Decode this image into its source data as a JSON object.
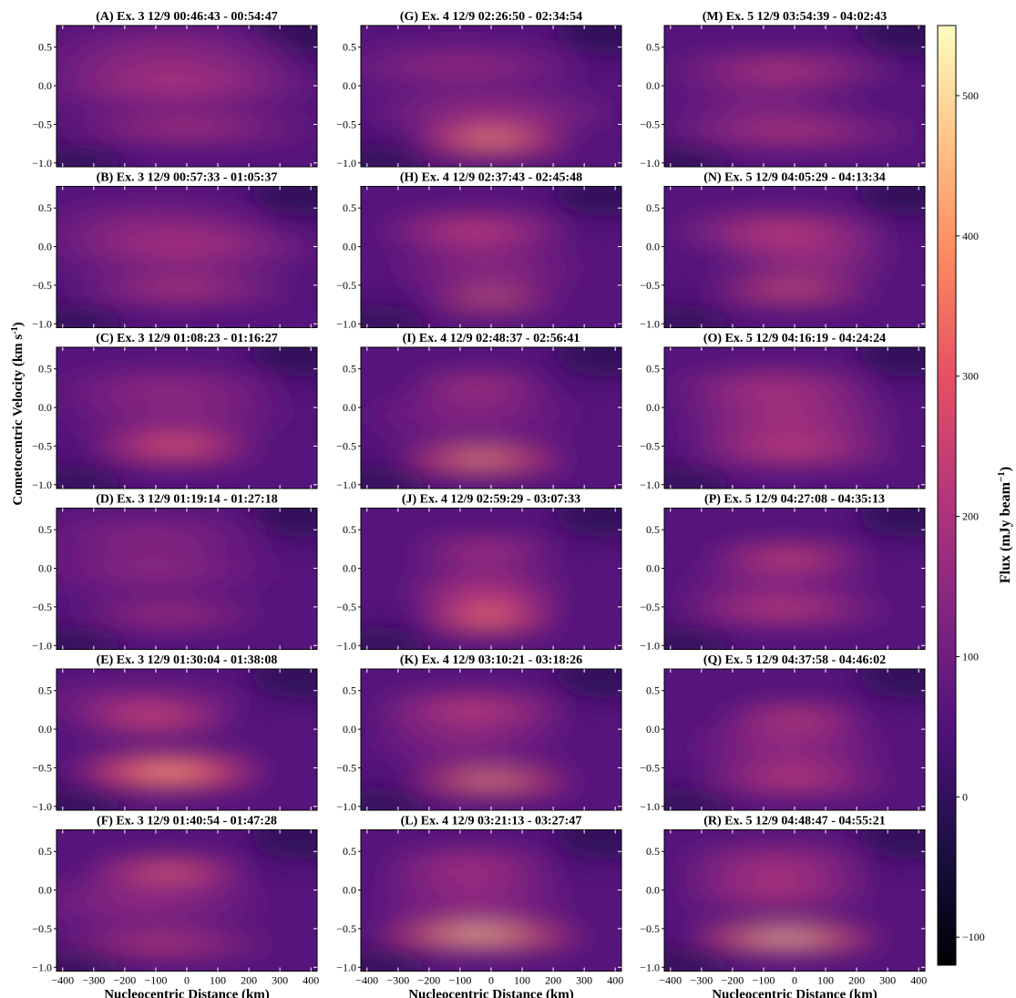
{
  "chart_data": {
    "type": "heatmap",
    "layout": {
      "rows": 6,
      "cols": 3
    },
    "colormap": "magma",
    "colors": {
      "magma_stops": [
        "#000004",
        "#1c1044",
        "#4f127b",
        "#812581",
        "#b5367a",
        "#e55064",
        "#fb8761",
        "#fec287",
        "#fcfdbf"
      ]
    },
    "xlabel": "Nucleocentric Distance (km)",
    "ylabel": "Cometocentric Velocity (km s",
    "ylabel_superscript": "-1",
    "ylabel_close": ")",
    "xlim": [
      -420,
      420
    ],
    "ylim": [
      -1.05,
      0.78
    ],
    "xticks": [
      -400,
      -300,
      -200,
      -100,
      0,
      100,
      200,
      300,
      400
    ],
    "xtick_labels": [
      "−400",
      "−300",
      "−200",
      "−100",
      "0",
      "100",
      "200",
      "300",
      "400"
    ],
    "yticks": [
      0.5,
      0.0,
      -0.5,
      -1.0
    ],
    "ytick_labels": [
      "0.5",
      "0.0",
      "−0.5",
      "−1.0"
    ],
    "colorbar": {
      "label": "Flux (mJy beam",
      "label_superscript": "−1",
      "label_close": ")",
      "vmin": -120,
      "vmax": 550,
      "ticks": [
        -100,
        0,
        100,
        200,
        300,
        400,
        500
      ],
      "tick_labels": [
        "−100",
        "0",
        "100",
        "200",
        "300",
        "400",
        "500"
      ]
    },
    "background_flux": 60,
    "panels": [
      {
        "title": "(A) Ex. 3 12/9 00:46:43 - 00:54:47",
        "blobs": [
          [
            -60,
            0.45,
            260,
            0.18,
            110
          ],
          [
            -40,
            0.05,
            280,
            0.22,
            150
          ],
          [
            0,
            -0.55,
            260,
            0.1,
            180
          ]
        ]
      },
      {
        "title": "(G) Ex. 4 12/9 02:26:50 - 02:34:54",
        "blobs": [
          [
            -100,
            0.25,
            260,
            0.18,
            110
          ],
          [
            0,
            -0.35,
            250,
            0.15,
            140
          ],
          [
            0,
            -0.72,
            170,
            0.1,
            380
          ]
        ]
      },
      {
        "title": "(M) Ex. 5 12/9 03:54:39 - 04:02:43",
        "blobs": [
          [
            -40,
            0.22,
            240,
            0.1,
            210
          ],
          [
            -100,
            -0.2,
            200,
            0.15,
            80
          ],
          [
            -20,
            -0.6,
            260,
            0.1,
            200
          ]
        ]
      },
      {
        "title": "(B) Ex. 3 12/9 00:57:33 - 01:05:37",
        "blobs": [
          [
            -100,
            0.3,
            230,
            0.15,
            120
          ],
          [
            -20,
            0.0,
            270,
            0.2,
            150
          ],
          [
            -20,
            -0.55,
            230,
            0.1,
            200
          ]
        ]
      },
      {
        "title": "(H) Ex. 4 12/9 02:37:43 - 02:45:48",
        "blobs": [
          [
            -50,
            0.2,
            200,
            0.16,
            190
          ],
          [
            -10,
            -0.3,
            200,
            0.15,
            120
          ],
          [
            0,
            -0.7,
            150,
            0.06,
            340
          ]
        ]
      },
      {
        "title": "(N) Ex. 5 12/9 04:05:29 - 04:13:34",
        "blobs": [
          [
            -40,
            0.2,
            220,
            0.15,
            200
          ],
          [
            40,
            -0.15,
            180,
            0.15,
            140
          ],
          [
            -10,
            -0.58,
            180,
            0.08,
            290
          ]
        ]
      },
      {
        "title": "(C) Ex. 3 12/9 01:08:23 - 01:16:27",
        "blobs": [
          [
            -60,
            0.25,
            240,
            0.15,
            120
          ],
          [
            -30,
            -0.1,
            240,
            0.15,
            100
          ],
          [
            -40,
            -0.52,
            180,
            0.12,
            280
          ]
        ]
      },
      {
        "title": "(I) Ex. 4 12/9 02:48:37 - 02:56:41",
        "blobs": [
          [
            -40,
            0.28,
            150,
            0.1,
            190
          ],
          [
            -60,
            -0.1,
            220,
            0.2,
            90
          ],
          [
            -30,
            -0.68,
            180,
            0.1,
            390
          ]
        ]
      },
      {
        "title": "(O) Ex. 5 12/9 04:16:19 - 04:24:24",
        "blobs": [
          [
            -60,
            0.25,
            220,
            0.15,
            170
          ],
          [
            -20,
            -0.15,
            220,
            0.18,
            150
          ],
          [
            -10,
            -0.55,
            220,
            0.12,
            220
          ]
        ]
      },
      {
        "title": "(D) Ex. 3 12/9 01:19:14 - 01:27:18",
        "blobs": [
          [
            -120,
            0.45,
            250,
            0.12,
            110
          ],
          [
            -100,
            0.0,
            250,
            0.2,
            100
          ],
          [
            -60,
            -0.6,
            200,
            0.09,
            180
          ]
        ]
      },
      {
        "title": "(J) Ex. 4 12/9 02:59:29 - 03:07:33",
        "blobs": [
          [
            -20,
            0.22,
            160,
            0.12,
            160
          ],
          [
            -20,
            -0.3,
            170,
            0.18,
            170
          ],
          [
            -10,
            -0.65,
            150,
            0.12,
            320
          ]
        ]
      },
      {
        "title": "(P) Ex. 5 12/9 04:27:08 - 04:35:13",
        "blobs": [
          [
            -20,
            0.15,
            170,
            0.1,
            240
          ],
          [
            -60,
            -0.2,
            200,
            0.15,
            90
          ],
          [
            -40,
            -0.55,
            220,
            0.1,
            220
          ]
        ]
      },
      {
        "title": "(E) Ex. 3 12/9 01:30:04 - 01:38:08",
        "blobs": [
          [
            -150,
            0.35,
            220,
            0.12,
            130
          ],
          [
            -110,
            0.12,
            170,
            0.1,
            250
          ],
          [
            -60,
            -0.55,
            200,
            0.15,
            380
          ]
        ]
      },
      {
        "title": "(K) Ex. 4 12/9 03:10:21 - 03:18:26",
        "blobs": [
          [
            -60,
            0.25,
            200,
            0.15,
            200
          ],
          [
            -80,
            -0.15,
            200,
            0.18,
            100
          ],
          [
            0,
            -0.68,
            180,
            0.09,
            400
          ]
        ]
      },
      {
        "title": "(Q) Ex. 5 12/9 04:37:58 - 04:46:02",
        "blobs": [
          [
            0,
            0.15,
            150,
            0.1,
            240
          ],
          [
            -20,
            -0.2,
            200,
            0.2,
            120
          ],
          [
            0,
            -0.65,
            200,
            0.12,
            210
          ]
        ]
      },
      {
        "title": "(F) Ex. 3 12/9 01:40:54 - 01:47:28",
        "blobs": [
          [
            -60,
            0.25,
            170,
            0.1,
            300
          ],
          [
            -130,
            -0.15,
            250,
            0.2,
            110
          ],
          [
            -80,
            -0.7,
            230,
            0.08,
            240
          ]
        ]
      },
      {
        "title": "(L) Ex. 4 12/9 03:21:13 - 03:27:47",
        "blobs": [
          [
            -70,
            0.3,
            180,
            0.15,
            160
          ],
          [
            -60,
            -0.1,
            200,
            0.2,
            120
          ],
          [
            -40,
            -0.6,
            220,
            0.1,
            470
          ]
        ]
      },
      {
        "title": "(R) Ex. 5 12/9 04:48:47 - 04:55:21",
        "blobs": [
          [
            -60,
            0.35,
            200,
            0.15,
            150
          ],
          [
            -60,
            0.0,
            200,
            0.15,
            170
          ],
          [
            -30,
            -0.62,
            200,
            0.1,
            480
          ]
        ]
      }
    ]
  }
}
